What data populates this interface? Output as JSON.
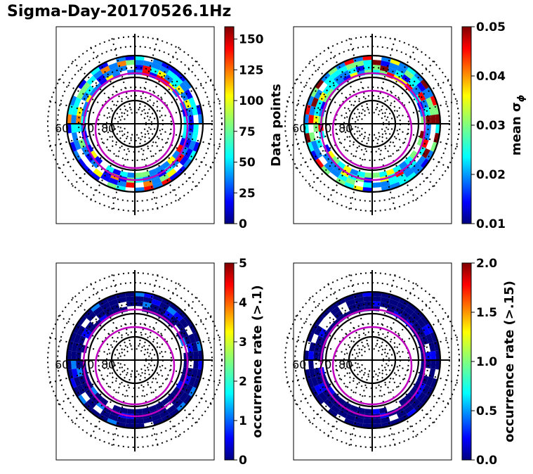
{
  "title": "Sigma-Day-20170526.1Hz",
  "colormap": [
    "#00007f",
    "#0000ff",
    "#007fff",
    "#00ffff",
    "#7fff7f",
    "#ffff00",
    "#ff7f00",
    "#ff0000",
    "#7f0000"
  ],
  "contour_color": "#bf00bf",
  "chart_data": [
    {
      "type": "heatmap",
      "projection": "polar",
      "lat_labels": [
        "60",
        "70",
        "80"
      ],
      "colorbar": {
        "label": "Data points",
        "ticks": [
          "0",
          "25",
          "50",
          "75",
          "100",
          "125",
          "150"
        ],
        "range": [
          0,
          160
        ]
      }
    },
    {
      "type": "heatmap",
      "projection": "polar",
      "lat_labels": [
        "60",
        "70",
        "80"
      ],
      "colorbar": {
        "label": "mean σ",
        "label_sub": "ϕ",
        "ticks": [
          "0.01",
          "0.02",
          "0.03",
          "0.04",
          "0.05"
        ],
        "range": [
          0.01,
          0.05
        ]
      }
    },
    {
      "type": "heatmap",
      "projection": "polar",
      "lat_labels": [
        "60",
        "70",
        "80"
      ],
      "colorbar": {
        "label": "occurrence rate (>.1)",
        "ticks": [
          "0",
          "1",
          "2",
          "3",
          "4",
          "5"
        ],
        "range": [
          0,
          5
        ]
      }
    },
    {
      "type": "heatmap",
      "projection": "polar",
      "lat_labels": [
        "60",
        "70",
        "80"
      ],
      "colorbar": {
        "label": "occurrence rate (>.15)",
        "ticks": [
          "0.0",
          "0.5",
          "1.0",
          "1.5",
          "2.0"
        ],
        "range": [
          0,
          2
        ]
      }
    }
  ]
}
